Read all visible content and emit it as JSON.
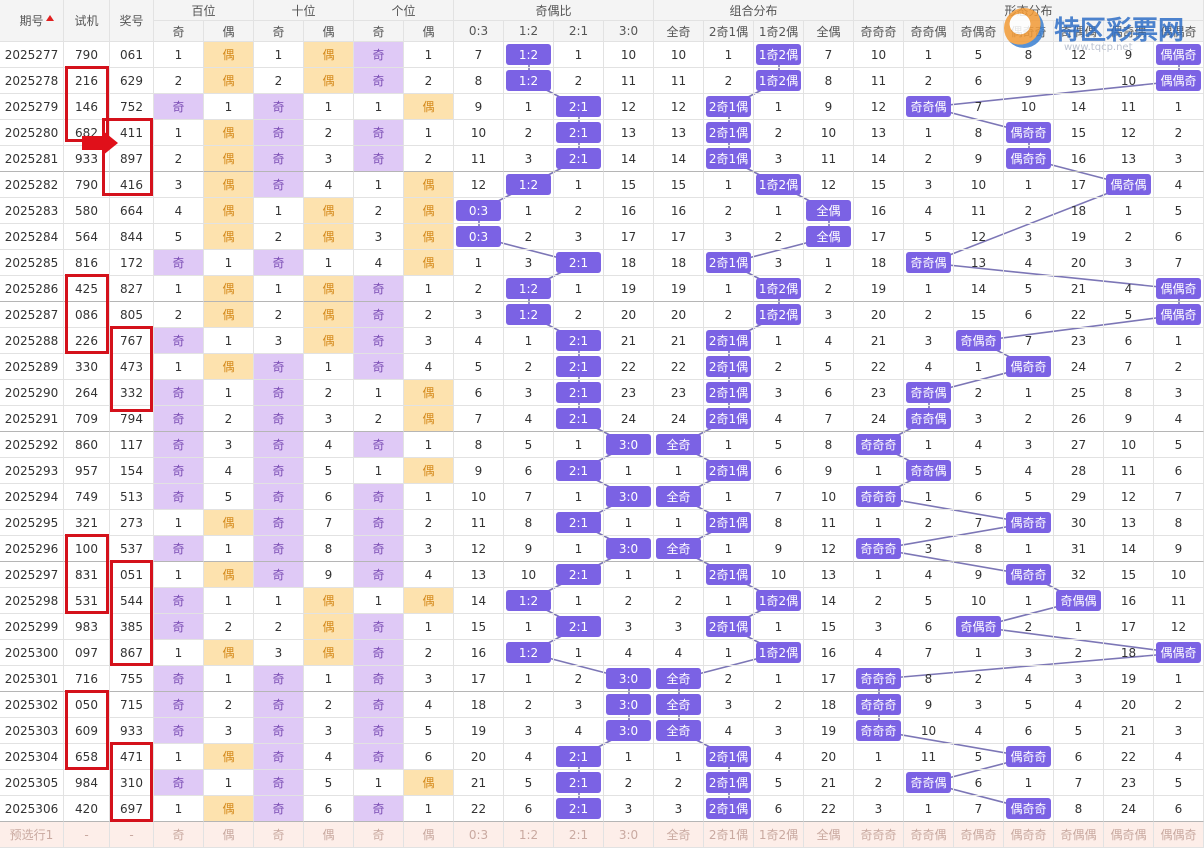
{
  "columns": {
    "issue": "期号",
    "trial": "试机",
    "draw": "奖号"
  },
  "groups": [
    {
      "name": "百位",
      "subs": [
        "奇",
        "偶"
      ]
    },
    {
      "name": "十位",
      "subs": [
        "奇",
        "偶"
      ]
    },
    {
      "name": "个位",
      "subs": [
        "奇",
        "偶"
      ]
    },
    {
      "name": "奇偶比",
      "subs": [
        "0:3",
        "1:2",
        "2:1",
        "3:0"
      ]
    },
    {
      "name": "组合分布",
      "subs": [
        "全奇",
        "2奇1偶",
        "1奇2偶",
        "全偶"
      ]
    },
    {
      "name": "形态分布",
      "subs": [
        "奇奇奇",
        "奇奇偶",
        "奇偶奇",
        "偶奇奇",
        "奇偶偶",
        "偶奇偶",
        "偶偶奇"
      ]
    }
  ],
  "rows": [
    [
      "2025277",
      "790",
      "061",
      1,
      "偶",
      1,
      "偶",
      "奇",
      1,
      7,
      "1:2",
      1,
      10,
      10,
      1,
      "1奇2偶",
      7,
      10,
      1,
      5,
      8,
      12,
      9,
      "偶偶奇"
    ],
    [
      "2025278",
      "216",
      "629",
      2,
      "偶",
      2,
      "偶",
      "奇",
      2,
      8,
      "1:2",
      2,
      11,
      11,
      2,
      "1奇2偶",
      8,
      11,
      2,
      6,
      9,
      13,
      10,
      "偶偶奇"
    ],
    [
      "2025279",
      "146",
      "752",
      "奇",
      1,
      "奇",
      1,
      1,
      "偶",
      9,
      1,
      "2:1",
      12,
      12,
      "2奇1偶",
      1,
      9,
      12,
      "奇奇偶",
      7,
      10,
      14,
      11,
      1
    ],
    [
      "2025280",
      "682",
      "411",
      1,
      "偶",
      "奇",
      2,
      "奇",
      1,
      10,
      2,
      "2:1",
      13,
      13,
      "2奇1偶",
      2,
      10,
      13,
      1,
      8,
      "偶奇奇",
      15,
      12,
      2
    ],
    [
      "2025281",
      "933",
      "897",
      2,
      "偶",
      "奇",
      3,
      "奇",
      2,
      11,
      3,
      "2:1",
      14,
      14,
      "2奇1偶",
      3,
      11,
      14,
      2,
      9,
      "偶奇奇",
      16,
      13,
      3
    ],
    [
      "2025282",
      "790",
      "416",
      3,
      "偶",
      "奇",
      4,
      1,
      "偶",
      12,
      "1:2",
      1,
      15,
      15,
      1,
      "1奇2偶",
      12,
      15,
      3,
      10,
      1,
      17,
      "偶奇偶",
      4
    ],
    [
      "2025283",
      "580",
      "664",
      4,
      "偶",
      1,
      "偶",
      2,
      "偶",
      "0:3",
      1,
      2,
      16,
      16,
      2,
      1,
      "全偶",
      16,
      4,
      11,
      2,
      18,
      1,
      5
    ],
    [
      "2025284",
      "564",
      "844",
      5,
      "偶",
      2,
      "偶",
      3,
      "偶",
      "0:3",
      2,
      3,
      17,
      17,
      3,
      2,
      "全偶",
      17,
      5,
      12,
      3,
      19,
      2,
      6
    ],
    [
      "2025285",
      "816",
      "172",
      "奇",
      1,
      "奇",
      1,
      4,
      "偶",
      1,
      3,
      "2:1",
      18,
      18,
      "2奇1偶",
      3,
      1,
      18,
      "奇奇偶",
      13,
      4,
      20,
      3,
      7
    ],
    [
      "2025286",
      "425",
      "827",
      1,
      "偶",
      1,
      "偶",
      "奇",
      1,
      2,
      "1:2",
      1,
      19,
      19,
      1,
      "1奇2偶",
      2,
      19,
      1,
      14,
      5,
      21,
      4,
      "偶偶奇"
    ],
    [
      "2025287",
      "086",
      "805",
      2,
      "偶",
      2,
      "偶",
      "奇",
      2,
      3,
      "1:2",
      2,
      20,
      20,
      2,
      "1奇2偶",
      3,
      20,
      2,
      15,
      6,
      22,
      5,
      "偶偶奇"
    ],
    [
      "2025288",
      "226",
      "767",
      "奇",
      1,
      3,
      "偶",
      "奇",
      3,
      4,
      1,
      "2:1",
      21,
      21,
      "2奇1偶",
      1,
      4,
      21,
      3,
      "奇偶奇",
      7,
      23,
      6,
      1
    ],
    [
      "2025289",
      "330",
      "473",
      1,
      "偶",
      "奇",
      1,
      "奇",
      4,
      5,
      2,
      "2:1",
      22,
      22,
      "2奇1偶",
      2,
      5,
      22,
      4,
      1,
      "偶奇奇",
      24,
      7,
      2
    ],
    [
      "2025290",
      "264",
      "332",
      "奇",
      1,
      "奇",
      2,
      1,
      "偶",
      6,
      3,
      "2:1",
      23,
      23,
      "2奇1偶",
      3,
      6,
      23,
      "奇奇偶",
      2,
      1,
      25,
      8,
      3
    ],
    [
      "2025291",
      "709",
      "794",
      "奇",
      2,
      "奇",
      3,
      2,
      "偶",
      7,
      4,
      "2:1",
      24,
      24,
      "2奇1偶",
      4,
      7,
      24,
      "奇奇偶",
      3,
      2,
      26,
      9,
      4
    ],
    [
      "2025292",
      "860",
      "117",
      "奇",
      3,
      "奇",
      4,
      "奇",
      1,
      8,
      5,
      1,
      "3:0",
      "全奇",
      1,
      5,
      8,
      "奇奇奇",
      1,
      4,
      3,
      27,
      10,
      5
    ],
    [
      "2025293",
      "957",
      "154",
      "奇",
      4,
      "奇",
      5,
      1,
      "偶",
      9,
      6,
      "2:1",
      1,
      1,
      "2奇1偶",
      6,
      9,
      1,
      "奇奇偶",
      5,
      4,
      28,
      11,
      6
    ],
    [
      "2025294",
      "749",
      "513",
      "奇",
      5,
      "奇",
      6,
      "奇",
      1,
      10,
      7,
      1,
      "3:0",
      "全奇",
      1,
      7,
      10,
      "奇奇奇",
      1,
      6,
      5,
      29,
      12,
      7
    ],
    [
      "2025295",
      "321",
      "273",
      1,
      "偶",
      "奇",
      7,
      "奇",
      2,
      11,
      8,
      "2:1",
      1,
      1,
      "2奇1偶",
      8,
      11,
      1,
      2,
      7,
      "偶奇奇",
      30,
      13,
      8
    ],
    [
      "2025296",
      "100",
      "537",
      "奇",
      1,
      "奇",
      8,
      "奇",
      3,
      12,
      9,
      1,
      "3:0",
      "全奇",
      1,
      9,
      12,
      "奇奇奇",
      3,
      8,
      1,
      31,
      14,
      9
    ],
    [
      "2025297",
      "831",
      "051",
      1,
      "偶",
      "奇",
      9,
      "奇",
      4,
      13,
      10,
      "2:1",
      1,
      1,
      "2奇1偶",
      10,
      13,
      1,
      4,
      9,
      "偶奇奇",
      32,
      15,
      10
    ],
    [
      "2025298",
      "531",
      "544",
      "奇",
      1,
      1,
      "偶",
      1,
      "偶",
      14,
      "1:2",
      1,
      2,
      2,
      1,
      "1奇2偶",
      14,
      2,
      5,
      10,
      1,
      "奇偶偶",
      16,
      11
    ],
    [
      "2025299",
      "983",
      "385",
      "奇",
      2,
      2,
      "偶",
      "奇",
      1,
      15,
      1,
      "2:1",
      3,
      3,
      "2奇1偶",
      1,
      15,
      3,
      6,
      "奇偶奇",
      2,
      1,
      17,
      12
    ],
    [
      "2025300",
      "097",
      "867",
      1,
      "偶",
      3,
      "偶",
      "奇",
      2,
      16,
      "1:2",
      1,
      4,
      4,
      1,
      "1奇2偶",
      16,
      4,
      7,
      1,
      3,
      2,
      18,
      "偶偶奇"
    ],
    [
      "2025301",
      "716",
      "755",
      "奇",
      1,
      "奇",
      1,
      "奇",
      3,
      17,
      1,
      2,
      "3:0",
      "全奇",
      2,
      1,
      17,
      "奇奇奇",
      8,
      2,
      4,
      3,
      19,
      1
    ],
    [
      "2025302",
      "050",
      "715",
      "奇",
      2,
      "奇",
      2,
      "奇",
      4,
      18,
      2,
      3,
      "3:0",
      "全奇",
      3,
      2,
      18,
      "奇奇奇",
      9,
      3,
      5,
      4,
      20,
      2
    ],
    [
      "2025303",
      "609",
      "933",
      "奇",
      3,
      "奇",
      3,
      "奇",
      5,
      19,
      3,
      4,
      "3:0",
      "全奇",
      4,
      3,
      19,
      "奇奇奇",
      10,
      4,
      6,
      5,
      21,
      3
    ],
    [
      "2025304",
      "658",
      "471",
      1,
      "偶",
      "奇",
      4,
      "奇",
      6,
      20,
      4,
      "2:1",
      1,
      1,
      "2奇1偶",
      4,
      20,
      1,
      11,
      5,
      "偶奇奇",
      6,
      22,
      4
    ],
    [
      "2025305",
      "984",
      "310",
      "奇",
      1,
      "奇",
      5,
      1,
      "偶",
      21,
      5,
      "2:1",
      2,
      2,
      "2奇1偶",
      5,
      21,
      2,
      "奇奇偶",
      6,
      1,
      7,
      23,
      5
    ],
    [
      "2025306",
      "420",
      "697",
      1,
      "偶",
      "奇",
      6,
      "奇",
      1,
      22,
      6,
      "2:1",
      3,
      3,
      "2奇1偶",
      6,
      22,
      3,
      1,
      7,
      "偶奇奇",
      8,
      24,
      6
    ]
  ],
  "preselect": [
    "预选行1",
    "-",
    "-",
    "奇",
    "偶",
    "奇",
    "偶",
    "奇",
    "偶",
    "0:3",
    "1:2",
    "2:1",
    "3:0",
    "全奇",
    "2奇1偶",
    "1奇2偶",
    "全偶",
    "奇奇奇",
    "奇奇偶",
    "奇偶奇",
    "偶奇奇",
    "奇偶偶",
    "偶奇偶",
    "偶偶奇"
  ],
  "logo": {
    "name": "特区彩票网",
    "url": "www.tqcp.net"
  }
}
